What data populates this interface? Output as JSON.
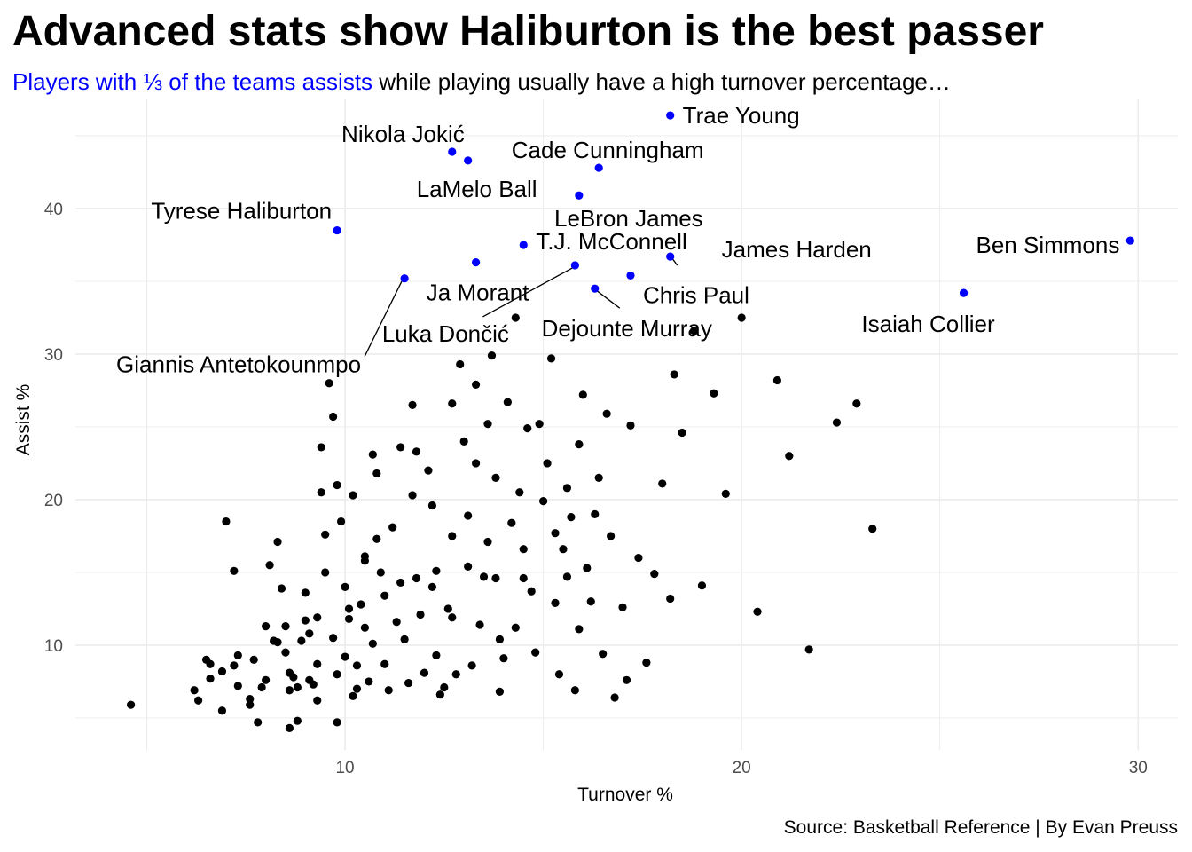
{
  "title": "Advanced stats show Haliburton is the best passer",
  "subtitle": {
    "highlight": "Players with ⅓ of the teams assists",
    "rest": " while playing usually have a high turnover percentage…"
  },
  "caption": "Source: Basketball Reference | By Evan Preuss",
  "colors": {
    "highlight": "#0000ff",
    "point": "#000000",
    "grid": "#ebebeb"
  },
  "chart_data": {
    "type": "scatter",
    "xlabel": "Turnover %",
    "ylabel": "Assist %",
    "xlim": [
      3.2,
      31.0
    ],
    "ylim": [
      2.8,
      47.5
    ],
    "xticks": [
      10,
      20,
      30
    ],
    "yticks": [
      10,
      20,
      30,
      40
    ],
    "grid": true,
    "highlighted": [
      {
        "name": "Trae Young",
        "x": 18.2,
        "y": 46.4
      },
      {
        "name": "Nikola Jokić",
        "x": 12.7,
        "y": 43.9
      },
      {
        "name": "Cade Cunningham",
        "x": 16.4,
        "y": 42.8
      },
      {
        "name": "LaMelo Ball",
        "x": 13.1,
        "y": 43.3
      },
      {
        "name": "Tyrese Haliburton",
        "x": 9.8,
        "y": 38.5
      },
      {
        "name": "T.J. McConnell",
        "x": 14.5,
        "y": 37.5
      },
      {
        "name": "LeBron James",
        "x": 15.9,
        "y": 40.9
      },
      {
        "name": "James Harden",
        "x": 18.2,
        "y": 36.7
      },
      {
        "name": "Ben Simmons",
        "x": 29.8,
        "y": 37.8
      },
      {
        "name": "Ja Morant",
        "x": 13.3,
        "y": 36.3
      },
      {
        "name": "Chris Paul",
        "x": 17.2,
        "y": 35.4
      },
      {
        "name": "Luka Dončić",
        "x": 15.8,
        "y": 36.1
      },
      {
        "name": "Dejounte Murray",
        "x": 16.3,
        "y": 34.5
      },
      {
        "name": "Isaiah Collier",
        "x": 25.6,
        "y": 34.2
      },
      {
        "name": "Giannis Antetokounmpo",
        "x": 11.5,
        "y": 35.2
      }
    ],
    "others": [
      [
        4.6,
        5.9
      ],
      [
        6.2,
        6.9
      ],
      [
        6.3,
        6.2
      ],
      [
        6.5,
        9.0
      ],
      [
        6.6,
        8.7
      ],
      [
        6.6,
        7.7
      ],
      [
        6.9,
        8.2
      ],
      [
        6.9,
        5.5
      ],
      [
        7.0,
        18.5
      ],
      [
        7.2,
        15.1
      ],
      [
        7.2,
        8.6
      ],
      [
        7.3,
        9.3
      ],
      [
        7.3,
        7.2
      ],
      [
        7.6,
        6.3
      ],
      [
        7.6,
        5.9
      ],
      [
        7.7,
        9.0
      ],
      [
        7.8,
        4.7
      ],
      [
        7.9,
        7.1
      ],
      [
        8.0,
        7.6
      ],
      [
        8.0,
        11.3
      ],
      [
        8.1,
        15.5
      ],
      [
        8.2,
        10.3
      ],
      [
        8.3,
        17.1
      ],
      [
        8.3,
        10.2
      ],
      [
        8.4,
        13.9
      ],
      [
        8.5,
        11.3
      ],
      [
        8.5,
        9.5
      ],
      [
        8.6,
        8.1
      ],
      [
        8.6,
        6.9
      ],
      [
        8.6,
        4.3
      ],
      [
        8.7,
        7.8
      ],
      [
        8.8,
        4.8
      ],
      [
        8.8,
        7.1
      ],
      [
        8.9,
        10.3
      ],
      [
        9.0,
        13.6
      ],
      [
        9.0,
        11.7
      ],
      [
        9.1,
        10.8
      ],
      [
        9.1,
        7.6
      ],
      [
        9.2,
        7.3
      ],
      [
        9.3,
        11.9
      ],
      [
        9.3,
        8.7
      ],
      [
        9.3,
        6.2
      ],
      [
        9.4,
        20.5
      ],
      [
        9.4,
        23.6
      ],
      [
        9.5,
        15.0
      ],
      [
        9.5,
        17.6
      ],
      [
        9.6,
        28.0
      ],
      [
        9.7,
        25.7
      ],
      [
        9.7,
        10.5
      ],
      [
        9.8,
        4.7
      ],
      [
        9.8,
        21.0
      ],
      [
        9.8,
        8.0
      ],
      [
        9.9,
        18.5
      ],
      [
        10.0,
        14.0
      ],
      [
        10.0,
        9.2
      ],
      [
        10.1,
        12.5
      ],
      [
        10.1,
        11.8
      ],
      [
        10.2,
        6.5
      ],
      [
        10.2,
        20.3
      ],
      [
        10.3,
        7.0
      ],
      [
        10.3,
        8.6
      ],
      [
        10.4,
        12.8
      ],
      [
        10.5,
        16.1
      ],
      [
        10.5,
        15.8
      ],
      [
        10.5,
        11.2
      ],
      [
        10.6,
        7.5
      ],
      [
        10.7,
        23.1
      ],
      [
        10.7,
        10.1
      ],
      [
        10.8,
        21.8
      ],
      [
        10.8,
        17.3
      ],
      [
        10.9,
        15.0
      ],
      [
        11.0,
        13.4
      ],
      [
        11.0,
        8.7
      ],
      [
        11.1,
        6.9
      ],
      [
        11.2,
        18.1
      ],
      [
        11.3,
        11.6
      ],
      [
        11.4,
        23.6
      ],
      [
        11.4,
        14.3
      ],
      [
        11.5,
        10.4
      ],
      [
        11.6,
        7.4
      ],
      [
        11.7,
        26.5
      ],
      [
        11.7,
        20.3
      ],
      [
        11.8,
        23.3
      ],
      [
        11.8,
        14.6
      ],
      [
        11.9,
        12.1
      ],
      [
        12.0,
        8.1
      ],
      [
        12.1,
        22.0
      ],
      [
        12.2,
        19.6
      ],
      [
        12.2,
        14.0
      ],
      [
        12.3,
        15.1
      ],
      [
        12.3,
        9.3
      ],
      [
        12.4,
        6.6
      ],
      [
        12.5,
        7.1
      ],
      [
        12.6,
        12.5
      ],
      [
        12.7,
        26.6
      ],
      [
        12.7,
        17.5
      ],
      [
        12.7,
        11.9
      ],
      [
        12.8,
        8.0
      ],
      [
        12.9,
        29.3
      ],
      [
        13.0,
        24.0
      ],
      [
        13.1,
        18.9
      ],
      [
        13.1,
        15.4
      ],
      [
        13.2,
        8.6
      ],
      [
        13.3,
        27.9
      ],
      [
        13.3,
        22.5
      ],
      [
        13.4,
        11.4
      ],
      [
        13.5,
        14.7
      ],
      [
        13.6,
        17.1
      ],
      [
        13.6,
        25.2
      ],
      [
        13.7,
        29.9
      ],
      [
        13.8,
        21.5
      ],
      [
        13.8,
        14.6
      ],
      [
        13.9,
        10.4
      ],
      [
        13.9,
        6.8
      ],
      [
        14.0,
        9.1
      ],
      [
        14.1,
        26.7
      ],
      [
        14.2,
        18.4
      ],
      [
        14.3,
        11.2
      ],
      [
        14.3,
        32.5
      ],
      [
        14.4,
        20.5
      ],
      [
        14.5,
        14.6
      ],
      [
        14.5,
        16.6
      ],
      [
        14.6,
        24.9
      ],
      [
        14.7,
        13.7
      ],
      [
        14.8,
        9.5
      ],
      [
        14.9,
        25.2
      ],
      [
        15.0,
        19.9
      ],
      [
        15.1,
        22.5
      ],
      [
        15.2,
        29.7
      ],
      [
        15.3,
        17.7
      ],
      [
        15.3,
        12.9
      ],
      [
        15.4,
        8.0
      ],
      [
        15.5,
        16.6
      ],
      [
        15.6,
        20.8
      ],
      [
        15.6,
        14.7
      ],
      [
        15.7,
        18.8
      ],
      [
        15.8,
        6.9
      ],
      [
        15.9,
        23.8
      ],
      [
        15.9,
        11.1
      ],
      [
        16.0,
        27.2
      ],
      [
        16.1,
        15.3
      ],
      [
        16.2,
        13.0
      ],
      [
        16.3,
        19.0
      ],
      [
        16.4,
        21.5
      ],
      [
        16.5,
        9.4
      ],
      [
        16.6,
        25.9
      ],
      [
        16.7,
        17.5
      ],
      [
        16.8,
        6.4
      ],
      [
        17.0,
        12.6
      ],
      [
        17.1,
        7.6
      ],
      [
        17.2,
        25.1
      ],
      [
        17.4,
        16.0
      ],
      [
        17.6,
        8.8
      ],
      [
        17.8,
        14.9
      ],
      [
        18.0,
        21.1
      ],
      [
        18.2,
        13.2
      ],
      [
        18.3,
        28.6
      ],
      [
        18.5,
        24.6
      ],
      [
        18.8,
        31.6
      ],
      [
        19.0,
        14.1
      ],
      [
        19.3,
        27.3
      ],
      [
        19.6,
        20.4
      ],
      [
        20.0,
        32.5
      ],
      [
        20.4,
        12.3
      ],
      [
        20.9,
        28.2
      ],
      [
        21.2,
        23.0
      ],
      [
        21.7,
        9.7
      ],
      [
        22.4,
        25.3
      ],
      [
        22.9,
        26.6
      ],
      [
        23.3,
        18.0
      ]
    ]
  }
}
